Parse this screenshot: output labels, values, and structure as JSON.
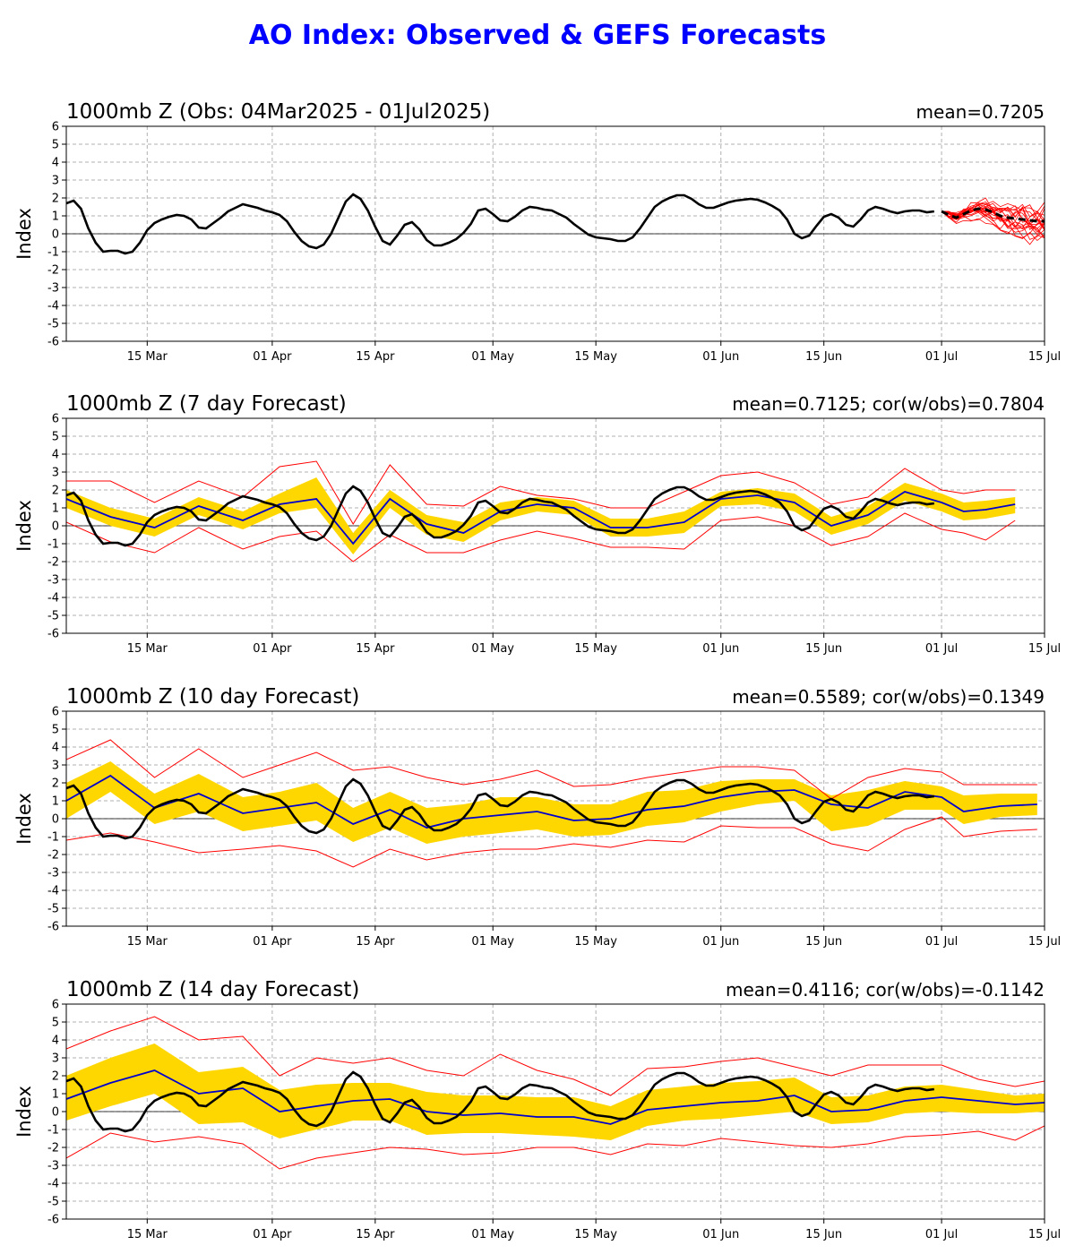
{
  "page_title": "AO Index: Observed & GEFS Forecasts",
  "colors": {
    "title": "#0000ff",
    "observed": "#000000",
    "ensemble_mean": "#0000cc",
    "spread_band": "#ffd700",
    "extreme_members": "#ff0000"
  },
  "chart_data": [
    {
      "type": "line",
      "title": "1000mb Z (Obs: 04Mar2025 - 01Jul2025)",
      "stats": "mean=0.7205",
      "ylabel": "Index",
      "ylim": [
        -6,
        6
      ],
      "yticks": [
        "6",
        "5",
        "4",
        "3",
        "2",
        "1",
        "0",
        "-1",
        "-2",
        "-3",
        "-4",
        "-5",
        "-6"
      ],
      "xlim": [
        "2025-03-04",
        "2025-07-15"
      ],
      "xticks": [
        {
          "date": "2025-03-15",
          "label": "15 Mar"
        },
        {
          "date": "2025-04-01",
          "label": "01 Apr"
        },
        {
          "date": "2025-04-15",
          "label": "15 Apr"
        },
        {
          "date": "2025-05-01",
          "label": "01 May"
        },
        {
          "date": "2025-05-15",
          "label": "15 May"
        },
        {
          "date": "2025-06-01",
          "label": "01 Jun"
        },
        {
          "date": "2025-06-15",
          "label": "15 Jun"
        },
        {
          "date": "2025-07-01",
          "label": "01 Jul"
        },
        {
          "date": "2025-07-15",
          "label": "15 Jul"
        }
      ],
      "grid": true,
      "observed": {
        "start": "2025-03-04",
        "values": [
          1.7,
          1.85,
          1.4,
          0.3,
          -0.5,
          -1.0,
          -0.95,
          -0.95,
          -1.1,
          -1.0,
          -0.5,
          0.2,
          0.6,
          0.8,
          0.95,
          1.05,
          1.0,
          0.8,
          0.35,
          0.3,
          0.6,
          0.9,
          1.25,
          1.45,
          1.65,
          1.55,
          1.45,
          1.3,
          1.2,
          1.05,
          0.7,
          0.1,
          -0.4,
          -0.7,
          -0.8,
          -0.6,
          0.0,
          0.9,
          1.8,
          2.2,
          1.95,
          1.3,
          0.4,
          -0.4,
          -0.6,
          -0.1,
          0.5,
          0.65,
          0.25,
          -0.35,
          -0.65,
          -0.65,
          -0.5,
          -0.3,
          0.05,
          0.55,
          1.3,
          1.4,
          1.1,
          0.75,
          0.7,
          0.95,
          1.3,
          1.5,
          1.45,
          1.35,
          1.3,
          1.1,
          0.9,
          0.55,
          0.25,
          -0.05,
          -0.2,
          -0.25,
          -0.3,
          -0.4,
          -0.4,
          -0.2,
          0.3,
          0.9,
          1.5,
          1.8,
          2.0,
          2.15,
          2.15,
          1.95,
          1.65,
          1.45,
          1.45,
          1.6,
          1.75,
          1.85,
          1.9,
          1.95,
          1.9,
          1.75,
          1.55,
          1.3,
          0.8,
          0.0,
          -0.25,
          -0.1,
          0.45,
          0.95,
          1.1,
          0.9,
          0.5,
          0.4,
          0.8,
          1.3,
          1.5,
          1.4,
          1.25,
          1.15,
          1.25,
          1.3,
          1.3,
          1.2,
          1.25
        ]
      },
      "forecast_members_from": "2025-07-01",
      "forecast_mean": {
        "start": "2025-07-01",
        "values": [
          1.25,
          1.05,
          0.9,
          1.1,
          1.3,
          1.4,
          1.35,
          1.2,
          1.0,
          0.9,
          0.85,
          0.8,
          0.75,
          0.7,
          0.7
        ]
      }
    },
    {
      "type": "line",
      "title": "1000mb Z (7 day Forecast)",
      "stats": "mean=0.7125; cor(w/obs)=0.7804",
      "ylabel": "Index",
      "ylim": [
        -6,
        6
      ],
      "yticks": [
        "6",
        "5",
        "4",
        "3",
        "2",
        "1",
        "0",
        "-1",
        "-2",
        "-3",
        "-4",
        "-5",
        "-6"
      ],
      "xlim": [
        "2025-03-04",
        "2025-07-15"
      ],
      "xticks": [
        {
          "date": "2025-03-15",
          "label": "15 Mar"
        },
        {
          "date": "2025-04-01",
          "label": "01 Apr"
        },
        {
          "date": "2025-04-15",
          "label": "15 Apr"
        },
        {
          "date": "2025-05-01",
          "label": "01 May"
        },
        {
          "date": "2025-05-15",
          "label": "15 May"
        },
        {
          "date": "2025-06-01",
          "label": "01 Jun"
        },
        {
          "date": "2025-06-15",
          "label": "15 Jun"
        },
        {
          "date": "2025-07-01",
          "label": "01 Jul"
        },
        {
          "date": "2025-07-15",
          "label": "15 Jul"
        }
      ],
      "grid": true,
      "forecast": {
        "start": "2025-03-04",
        "dates": [
          "2025-03-04",
          "2025-03-10",
          "2025-03-16",
          "2025-03-22",
          "2025-03-28",
          "2025-04-02",
          "2025-04-07",
          "2025-04-12",
          "2025-04-17",
          "2025-04-22",
          "2025-04-27",
          "2025-05-02",
          "2025-05-07",
          "2025-05-12",
          "2025-05-17",
          "2025-05-22",
          "2025-05-27",
          "2025-06-01",
          "2025-06-06",
          "2025-06-11",
          "2025-06-16",
          "2025-06-21",
          "2025-06-26",
          "2025-07-01",
          "2025-07-04",
          "2025-07-07",
          "2025-07-11"
        ],
        "mean": [
          1.5,
          0.5,
          -0.1,
          1.1,
          0.3,
          1.2,
          1.5,
          -1.0,
          1.5,
          0.1,
          -0.4,
          0.8,
          1.2,
          1.0,
          -0.1,
          -0.1,
          0.2,
          1.5,
          1.7,
          1.3,
          0.0,
          0.6,
          1.9,
          1.3,
          0.8,
          0.9,
          1.2
        ],
        "band_low": [
          1.0,
          0.0,
          -0.6,
          0.6,
          -0.2,
          0.7,
          1.0,
          -1.6,
          1.0,
          -0.5,
          -0.9,
          0.3,
          0.8,
          0.6,
          -0.6,
          -0.6,
          -0.4,
          1.1,
          1.2,
          0.8,
          -0.5,
          0.1,
          1.4,
          0.8,
          0.3,
          0.4,
          0.7
        ],
        "band_high": [
          2.0,
          1.0,
          0.4,
          1.6,
          0.8,
          1.8,
          2.7,
          -0.4,
          2.0,
          0.6,
          0.2,
          1.3,
          1.6,
          1.4,
          0.4,
          0.4,
          0.8,
          1.9,
          2.1,
          1.8,
          0.5,
          1.1,
          2.4,
          1.8,
          1.3,
          1.4,
          1.6
        ],
        "max": [
          2.5,
          2.5,
          1.3,
          2.5,
          1.6,
          3.3,
          3.6,
          0.1,
          3.4,
          1.2,
          1.1,
          2.2,
          1.7,
          1.5,
          1.0,
          1.0,
          1.9,
          2.8,
          3.0,
          2.4,
          1.2,
          1.6,
          3.2,
          2.0,
          1.8,
          2.0,
          2.0
        ],
        "min": [
          0.2,
          -0.9,
          -1.5,
          -0.1,
          -1.3,
          -0.6,
          -0.3,
          -2.0,
          -0.5,
          -1.5,
          -1.5,
          -0.8,
          -0.3,
          -0.7,
          -1.2,
          -1.2,
          -1.3,
          0.3,
          0.5,
          0.0,
          -1.1,
          -0.6,
          0.7,
          -0.2,
          -0.4,
          -0.8,
          0.3
        ]
      }
    },
    {
      "type": "line",
      "title": "1000mb Z (10 day Forecast)",
      "stats": "mean=0.5589; cor(w/obs)=0.1349",
      "ylabel": "Index",
      "ylim": [
        -6,
        6
      ],
      "yticks": [
        "6",
        "5",
        "4",
        "3",
        "2",
        "1",
        "0",
        "-1",
        "-2",
        "-3",
        "-4",
        "-5",
        "-6"
      ],
      "xlim": [
        "2025-03-04",
        "2025-07-15"
      ],
      "xticks": [
        {
          "date": "2025-03-15",
          "label": "15 Mar"
        },
        {
          "date": "2025-04-01",
          "label": "01 Apr"
        },
        {
          "date": "2025-04-15",
          "label": "15 Apr"
        },
        {
          "date": "2025-05-01",
          "label": "01 May"
        },
        {
          "date": "2025-05-15",
          "label": "15 May"
        },
        {
          "date": "2025-06-01",
          "label": "01 Jun"
        },
        {
          "date": "2025-06-15",
          "label": "15 Jun"
        },
        {
          "date": "2025-07-01",
          "label": "01 Jul"
        },
        {
          "date": "2025-07-15",
          "label": "15 Jul"
        }
      ],
      "grid": true,
      "forecast": {
        "start": "2025-03-04",
        "dates": [
          "2025-03-04",
          "2025-03-10",
          "2025-03-16",
          "2025-03-22",
          "2025-03-28",
          "2025-04-02",
          "2025-04-07",
          "2025-04-12",
          "2025-04-17",
          "2025-04-22",
          "2025-04-27",
          "2025-05-02",
          "2025-05-07",
          "2025-05-12",
          "2025-05-17",
          "2025-05-22",
          "2025-05-27",
          "2025-06-01",
          "2025-06-06",
          "2025-06-11",
          "2025-06-16",
          "2025-06-21",
          "2025-06-26",
          "2025-07-01",
          "2025-07-04",
          "2025-07-09",
          "2025-07-14"
        ],
        "mean": [
          1.0,
          2.4,
          0.6,
          1.4,
          0.3,
          0.6,
          0.9,
          -0.3,
          0.5,
          -0.5,
          0.0,
          0.2,
          0.4,
          -0.1,
          0.0,
          0.5,
          0.7,
          1.2,
          1.5,
          1.6,
          0.8,
          0.6,
          1.5,
          1.2,
          0.4,
          0.7,
          0.8
        ],
        "band_low": [
          0.0,
          1.5,
          -0.3,
          0.4,
          -0.7,
          -0.4,
          -0.1,
          -1.3,
          -0.5,
          -1.4,
          -1.0,
          -0.8,
          -0.6,
          -1.0,
          -0.9,
          -0.4,
          -0.2,
          0.4,
          0.8,
          1.0,
          -0.7,
          -0.4,
          0.5,
          0.5,
          -0.3,
          0.1,
          0.2
        ],
        "band_high": [
          2.0,
          3.2,
          1.4,
          2.5,
          1.2,
          1.5,
          2.0,
          0.6,
          1.5,
          0.6,
          0.8,
          1.2,
          1.2,
          0.8,
          0.8,
          1.5,
          1.6,
          2.1,
          2.2,
          2.2,
          1.3,
          1.6,
          2.1,
          1.8,
          1.3,
          1.4,
          1.4
        ],
        "max": [
          3.3,
          4.4,
          2.3,
          3.9,
          2.3,
          3.0,
          3.7,
          2.7,
          2.9,
          2.3,
          1.9,
          2.2,
          2.7,
          1.8,
          1.9,
          2.3,
          2.6,
          2.9,
          2.9,
          2.7,
          1.1,
          2.3,
          2.8,
          2.6,
          1.9,
          1.9,
          1.9
        ],
        "min": [
          -1.2,
          -0.8,
          -1.3,
          -1.9,
          -1.7,
          -1.5,
          -1.8,
          -2.7,
          -1.7,
          -2.3,
          -1.9,
          -1.7,
          -1.7,
          -1.4,
          -1.6,
          -1.2,
          -1.3,
          -0.4,
          -0.5,
          -0.5,
          -1.4,
          -1.8,
          -0.6,
          0.1,
          -1.0,
          -0.7,
          -0.6
        ]
      }
    },
    {
      "type": "line",
      "title": "1000mb Z (14 day Forecast)",
      "stats": "mean=0.4116; cor(w/obs)=-0.1142",
      "ylabel": "Index",
      "ylim": [
        -6,
        6
      ],
      "yticks": [
        "6",
        "5",
        "4",
        "3",
        "2",
        "1",
        "0",
        "-1",
        "-2",
        "-3",
        "-4",
        "-5",
        "-6"
      ],
      "xlim": [
        "2025-03-04",
        "2025-07-15"
      ],
      "xticks": [
        {
          "date": "2025-03-15",
          "label": "15 Mar"
        },
        {
          "date": "2025-04-01",
          "label": "01 Apr"
        },
        {
          "date": "2025-04-15",
          "label": "15 Apr"
        },
        {
          "date": "2025-05-01",
          "label": "01 May"
        },
        {
          "date": "2025-05-15",
          "label": "15 May"
        },
        {
          "date": "2025-06-01",
          "label": "01 Jun"
        },
        {
          "date": "2025-06-15",
          "label": "15 Jun"
        },
        {
          "date": "2025-07-01",
          "label": "01 Jul"
        },
        {
          "date": "2025-07-15",
          "label": "15 Jul"
        }
      ],
      "grid": true,
      "forecast": {
        "start": "2025-03-04",
        "dates": [
          "2025-03-04",
          "2025-03-10",
          "2025-03-16",
          "2025-03-22",
          "2025-03-28",
          "2025-04-02",
          "2025-04-07",
          "2025-04-12",
          "2025-04-17",
          "2025-04-22",
          "2025-04-27",
          "2025-05-02",
          "2025-05-07",
          "2025-05-12",
          "2025-05-17",
          "2025-05-22",
          "2025-05-27",
          "2025-06-01",
          "2025-06-06",
          "2025-06-11",
          "2025-06-16",
          "2025-06-21",
          "2025-06-26",
          "2025-07-01",
          "2025-07-06",
          "2025-07-11",
          "2025-07-15"
        ],
        "mean": [
          0.7,
          1.6,
          2.3,
          1.0,
          1.3,
          0.0,
          0.3,
          0.6,
          0.7,
          0.0,
          -0.2,
          -0.1,
          -0.3,
          -0.3,
          -0.7,
          0.1,
          0.3,
          0.5,
          0.6,
          0.9,
          0.0,
          0.1,
          0.6,
          0.8,
          0.6,
          0.4,
          0.5
        ],
        "band_low": [
          -0.5,
          0.3,
          1.0,
          -0.7,
          -0.6,
          -1.5,
          -1.0,
          -0.5,
          -0.5,
          -1.3,
          -1.2,
          -1.2,
          -1.3,
          -1.4,
          -1.6,
          -0.8,
          -0.5,
          -0.4,
          -0.2,
          0.0,
          -0.7,
          -0.6,
          -0.1,
          0.0,
          -0.1,
          -0.1,
          0.0
        ],
        "band_high": [
          2.0,
          3.0,
          3.8,
          2.2,
          2.5,
          1.2,
          1.5,
          1.6,
          1.6,
          1.1,
          0.9,
          0.9,
          0.8,
          0.8,
          0.3,
          1.2,
          1.4,
          1.6,
          1.7,
          1.9,
          0.8,
          0.9,
          1.4,
          1.5,
          1.2,
          0.9,
          1.0
        ],
        "max": [
          3.5,
          4.5,
          5.3,
          4.0,
          4.2,
          2.0,
          3.0,
          2.7,
          3.0,
          2.3,
          2.0,
          3.2,
          2.3,
          1.8,
          0.9,
          2.4,
          2.5,
          2.8,
          3.0,
          2.5,
          2.0,
          2.6,
          2.6,
          2.6,
          1.8,
          1.4,
          1.7
        ],
        "min": [
          -2.6,
          -1.2,
          -1.7,
          -1.4,
          -1.8,
          -3.2,
          -2.6,
          -2.3,
          -2.0,
          -2.1,
          -2.4,
          -2.3,
          -2.0,
          -2.0,
          -2.4,
          -1.8,
          -1.9,
          -1.5,
          -1.7,
          -1.9,
          -2.0,
          -1.8,
          -1.4,
          -1.3,
          -1.1,
          -1.6,
          -0.8
        ]
      }
    }
  ]
}
